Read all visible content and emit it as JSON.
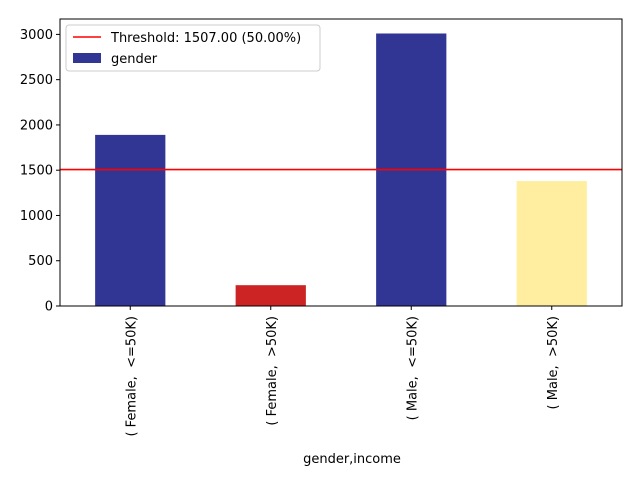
{
  "chart_data": {
    "type": "bar",
    "xlabel": "gender,income",
    "ylabel": "",
    "categories": [
      "( Female,  <=50K)",
      "( Female,  >50K)",
      "( Male,  <=50K)",
      "( Male,  >50K)"
    ],
    "series": [
      {
        "name": "gender",
        "values": [
          1890,
          230,
          3010,
          1380
        ],
        "colors": [
          "#313695",
          "#cc2424",
          "#313695",
          "#ffeda0"
        ]
      }
    ],
    "threshold": {
      "value": 1507.0,
      "label": "Threshold: 1507.00 (50.00%)",
      "color": "#ff0000"
    },
    "ylim": [
      0,
      3170
    ],
    "yticks": [
      0,
      500,
      1000,
      1500,
      2000,
      2500,
      3000
    ],
    "legend_position": "upper-left",
    "grid": false
  }
}
